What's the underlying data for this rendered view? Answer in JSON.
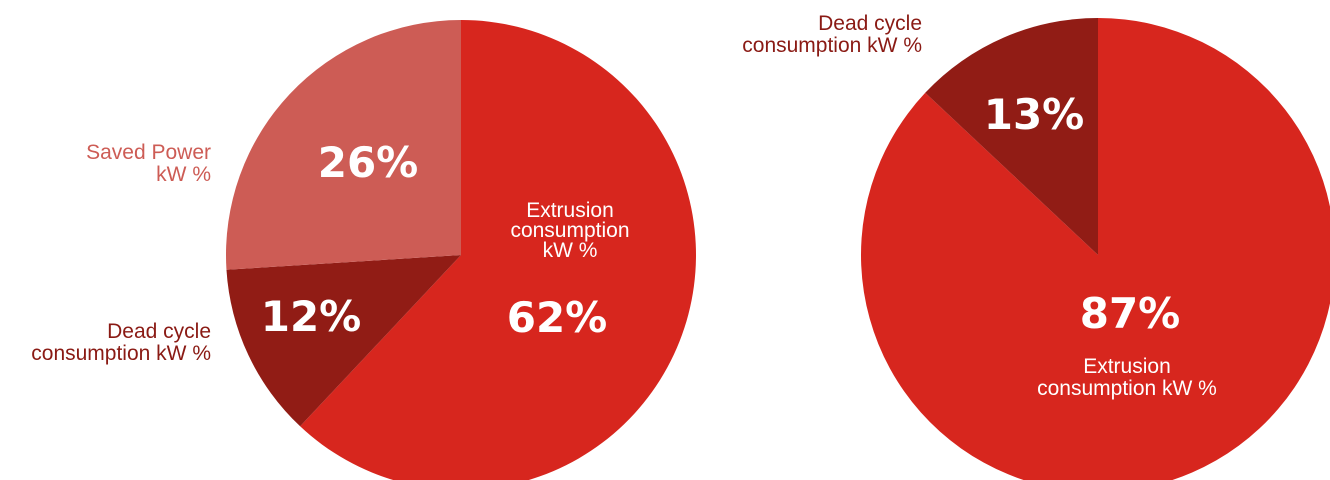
{
  "colors": {
    "extrusion": "#d7261e",
    "dead_cycle": "#911c15",
    "saved_power": "#cd5c55",
    "background": "#ffffff"
  },
  "chart_data": [
    {
      "type": "pie",
      "slices": [
        {
          "label": "Extrusion consumption kW %",
          "lines": [
            "Extrusion",
            "consumption",
            "kW %"
          ],
          "value": 62,
          "display": "62%",
          "color": "#d7261e",
          "label_position": "inside"
        },
        {
          "label": "Dead cycle consumption kW %",
          "lines": [
            "Dead cycle",
            "consumption kW %"
          ],
          "value": 12,
          "display": "12%",
          "color": "#911c15",
          "label_position": "outside-left"
        },
        {
          "label": "Saved Power kW %",
          "lines": [
            "Saved Power",
            "kW %"
          ],
          "value": 26,
          "display": "26%",
          "color": "#cd5c55",
          "label_position": "outside-left"
        }
      ]
    },
    {
      "type": "pie",
      "slices": [
        {
          "label": "Extrusion consumption kW %",
          "lines": [
            "Extrusion",
            "consumption kW %"
          ],
          "value": 87,
          "display": "87%",
          "color": "#d7261e",
          "label_position": "inside"
        },
        {
          "label": "Dead cycle consumption kW %",
          "lines": [
            "Dead cycle",
            "consumption kW %"
          ],
          "value": 13,
          "display": "13%",
          "color": "#911c15",
          "label_position": "outside-left"
        }
      ]
    }
  ]
}
